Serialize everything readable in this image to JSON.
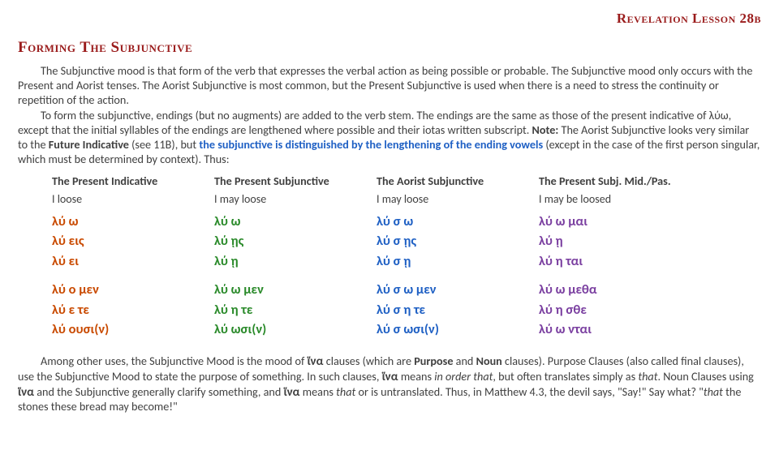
{
  "lesson_tag": "Revelation Lesson 28b",
  "heading": "Forming The Subjunctive",
  "p1a": "The Subjunctive mood is that form of the verb that expresses the verbal action as being possible or probable. The Subjunctive mood only occurs with the Present and Aorist tenses. The Aorist Subjunctive is most common, but the Present Subjunctive is used when there is a need to stress the continuity or repetition of the action.",
  "p2a": "To form the subjunctive, endings (but no augments) are added to the verb stem. The endings are the same as those of the present indicative of λύω, except that the initial syllables of the endings are lengthened where possible and their iotas written subscript. ",
  "p2_note_label": "Note:",
  "p2b": " The Aorist Subjunctive looks very similar to the ",
  "p2c": "Future Indicative",
  "p2d": " (see 11B), but ",
  "p2e": "the subjunctive is distinguished by the lengthening of the ending vowels",
  "p2f": " (except in the case of the first person singular, which must be determined by context). Thus:",
  "cols": [
    {
      "head": "The Present Indicative",
      "gloss": "I loose",
      "sg": [
        "λύ ω",
        "λύ εις",
        "λύ ει"
      ],
      "pl": [
        "λύ ο μεν",
        "λύ ε τε",
        "λύ ουσι(ν)"
      ],
      "cls": "pres-ind"
    },
    {
      "head": "The Present Subjunctive",
      "gloss": "I may loose",
      "sg": [
        "λύ ω",
        "λύ ῃς",
        "λύ ῃ"
      ],
      "pl": [
        "λύ ω μεν",
        "λύ η τε",
        "λύ ωσι(ν)"
      ],
      "cls": "pres-subj"
    },
    {
      "head": "The Aorist Subjunctive",
      "gloss": "I may loose",
      "sg": [
        "λύ σ ω",
        "λύ σ ῃς",
        "λύ σ ῃ"
      ],
      "pl": [
        "λύ σ ω μεν",
        "λύ σ η τε",
        "λύ σ ωσι(ν)"
      ],
      "cls": "aor-subj"
    },
    {
      "head": "The Present Subj. Mid./Pas.",
      "gloss": "I may be loosed",
      "sg": [
        "λύ ω μαι",
        "λύ ῃ",
        "λύ η ται"
      ],
      "pl": [
        "λύ ω μεθα",
        "λύ η σθε",
        "λύ ω νται"
      ],
      "cls": "mp-subj"
    }
  ],
  "f1a": "Among other uses, the Subjunctive Mood is the mood of ",
  "hina1": "ἵνα",
  "f1b": " clauses (which are ",
  "f1c": "Purpose",
  "f1d": " and ",
  "f1e": "Noun",
  "f1f": " clauses). Purpose Clauses (also called final clauses), use the Subjunctive Mood to state the purpose of something. In such clauses, ",
  "hina2": "ἵνα",
  "f1g": " means ",
  "f1h": "in order that",
  "f1i": ", but often translates simply as ",
  "f1j": "that",
  "f1k": ". Noun Clauses using ",
  "hina3": "ἵνα",
  "f1l": " and the Subjunctive generally clarify something, and ",
  "hina4": "ἵνα",
  "f1m": " means ",
  "f1n": "that",
  "f1o": " or is untranslated. Thus, in Matthew 4.3, the devil says, \"Say!\" Say what? \"",
  "f1p": "that",
  "f1q": " the stones these bread may become!\""
}
